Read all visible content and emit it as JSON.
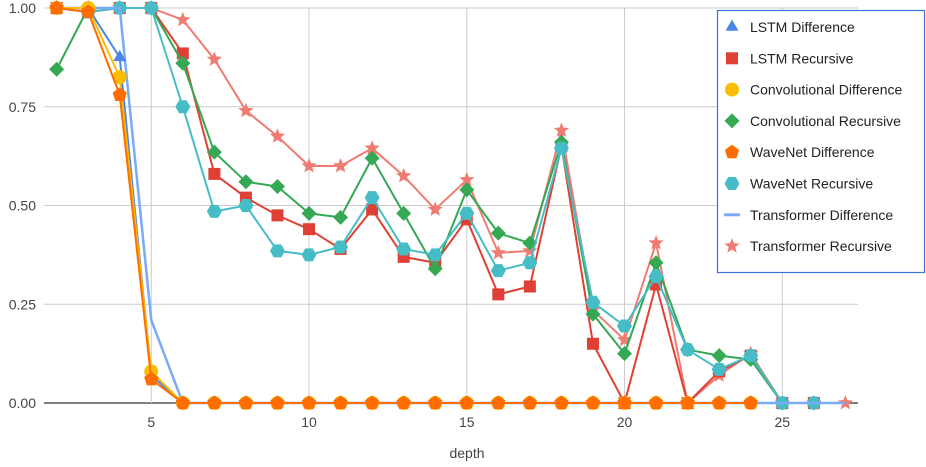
{
  "chart_data": {
    "type": "line",
    "xlabel": "depth",
    "ylabel": "",
    "xlim": [
      1.6,
      27.4
    ],
    "ylim": [
      0,
      1
    ],
    "x_ticks": [
      5,
      10,
      15,
      20,
      25
    ],
    "y_ticks": [
      0,
      0.25,
      0.5,
      0.75,
      1
    ],
    "x_tick_labels": [
      "5",
      "10",
      "15",
      "20",
      "25"
    ],
    "y_tick_labels": [
      "0.00",
      "0.25",
      "0.50",
      "0.75",
      "1.00"
    ],
    "grid": true,
    "legend_position": "top-right",
    "series": [
      {
        "name": "LSTM Difference",
        "color": "#4a86e8",
        "marker": "triangle",
        "x": [
          2,
          3,
          4,
          5,
          6,
          7,
          8,
          9,
          10,
          11,
          12,
          13,
          14,
          15,
          16,
          17,
          18,
          19,
          20,
          21,
          22,
          23,
          24
        ],
        "y": [
          1,
          1,
          0.875,
          0.07,
          0,
          0,
          0,
          0,
          0,
          0,
          0,
          0,
          0,
          0,
          0,
          0,
          0,
          0,
          0,
          0,
          0,
          0,
          0
        ]
      },
      {
        "name": "LSTM Recursive",
        "color": "#e04034",
        "marker": "square",
        "x": [
          2,
          3,
          4,
          5,
          6,
          7,
          8,
          9,
          10,
          11,
          12,
          13,
          14,
          15,
          16,
          17,
          18,
          19,
          20,
          21,
          22,
          23,
          24,
          25,
          26
        ],
        "y": [
          1,
          0.99,
          1,
          1,
          0.885,
          0.58,
          0.52,
          0.475,
          0.44,
          0.39,
          0.49,
          0.37,
          0.355,
          0.465,
          0.275,
          0.295,
          0.65,
          0.15,
          0,
          0.3,
          0,
          0.08,
          0.12,
          0,
          0
        ]
      },
      {
        "name": "Convolutional Difference",
        "color": "#fbbc04",
        "marker": "circle",
        "x": [
          2,
          3,
          4,
          5,
          6,
          7,
          8,
          9,
          10,
          11,
          12,
          13,
          14,
          15,
          16,
          17,
          18,
          19,
          20,
          21,
          22,
          23,
          24
        ],
        "y": [
          1,
          1,
          0.825,
          0.08,
          0,
          0,
          0,
          0,
          0,
          0,
          0,
          0,
          0,
          0,
          0,
          0,
          0,
          0,
          0,
          0,
          0,
          0,
          0
        ]
      },
      {
        "name": "Convolutional Recursive",
        "color": "#34a853",
        "marker": "diamond",
        "x": [
          2,
          3,
          4,
          5,
          6,
          7,
          8,
          9,
          10,
          11,
          12,
          13,
          14,
          15,
          16,
          17,
          18,
          19,
          20,
          21,
          22,
          23,
          24,
          25,
          26
        ],
        "y": [
          0.845,
          1,
          1,
          1,
          0.86,
          0.635,
          0.56,
          0.548,
          0.48,
          0.47,
          0.62,
          0.48,
          0.34,
          0.54,
          0.43,
          0.405,
          0.66,
          0.225,
          0.125,
          0.355,
          0.135,
          0.12,
          0.11,
          0,
          0
        ]
      },
      {
        "name": "WaveNet Difference",
        "color": "#ff6d01",
        "marker": "pentagon",
        "x": [
          2,
          3,
          4,
          5,
          6,
          7,
          8,
          9,
          10,
          11,
          12,
          13,
          14,
          15,
          16,
          17,
          18,
          19,
          20,
          21,
          22,
          23,
          24
        ],
        "y": [
          1,
          0.99,
          0.78,
          0.06,
          0,
          0,
          0,
          0,
          0,
          0,
          0,
          0,
          0,
          0,
          0,
          0,
          0,
          0,
          0,
          0,
          0,
          0,
          0
        ]
      },
      {
        "name": "WaveNet Recursive",
        "color": "#46bdc6",
        "marker": "hexagon",
        "x": [
          2,
          3,
          4,
          5,
          6,
          7,
          8,
          9,
          10,
          11,
          12,
          13,
          14,
          15,
          16,
          17,
          18,
          19,
          20,
          21,
          22,
          23,
          24,
          25,
          26
        ],
        "y": [
          1,
          0.99,
          1,
          1,
          0.75,
          0.485,
          0.5,
          0.385,
          0.375,
          0.395,
          0.52,
          0.39,
          0.375,
          0.48,
          0.335,
          0.355,
          0.645,
          0.255,
          0.195,
          0.32,
          0.135,
          0.085,
          0.12,
          0,
          0
        ]
      },
      {
        "name": "Transformer Difference",
        "color": "#7baaf7",
        "marker": "none",
        "x": [
          2,
          3,
          4,
          5,
          6,
          7,
          8,
          9,
          10,
          11,
          12,
          13,
          14,
          15,
          16,
          17,
          18,
          19,
          20,
          21,
          22,
          23,
          24,
          25,
          26,
          27
        ],
        "y": [
          1,
          1,
          1,
          0.21,
          0,
          0,
          0,
          0,
          0,
          0,
          0,
          0,
          0,
          0,
          0,
          0,
          0,
          0,
          0,
          0,
          0,
          0,
          0,
          0,
          0,
          0
        ]
      },
      {
        "name": "Transformer Recursive",
        "color": "#f07b72",
        "marker": "star",
        "x": [
          2,
          3,
          4,
          5,
          6,
          7,
          8,
          9,
          10,
          11,
          12,
          13,
          14,
          15,
          16,
          17,
          18,
          19,
          20,
          21,
          22,
          23,
          24,
          25,
          26,
          27
        ],
        "y": [
          1,
          1,
          1,
          1,
          0.97,
          0.87,
          0.74,
          0.675,
          0.6,
          0.6,
          0.645,
          0.575,
          0.49,
          0.565,
          0.38,
          0.385,
          0.69,
          0.235,
          0.16,
          0.405,
          0,
          0.07,
          0.125,
          0,
          0,
          0
        ]
      }
    ]
  }
}
